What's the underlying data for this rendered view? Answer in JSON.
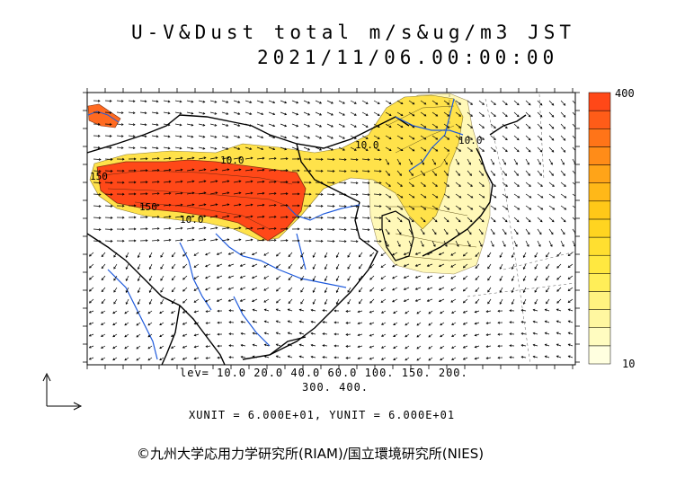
{
  "title": {
    "line1": "U-V&Dust total m/s&ug/m3 JST",
    "line2": "2021/11/06.00:00:00"
  },
  "legend": {
    "max_label": "400",
    "min_label": "10",
    "colors": [
      "#ffffe0",
      "#fffcc0",
      "#fff7a0",
      "#fff380",
      "#ffee58",
      "#ffe840",
      "#ffdf30",
      "#ffd420",
      "#ffc818",
      "#ffb818",
      "#ffa418",
      "#ff8c18",
      "#ff7418",
      "#ff5c18",
      "#ff4818"
    ]
  },
  "levels": {
    "line1": "lev= 10.0 20.0 40.0 60.0 100. 150. 200.",
    "line2": "300. 400."
  },
  "units": "XUNIT = 6.000E+01, YUNIT = 6.000E+01",
  "credit": "©九州大学応用力学研究所(RIAM)/国立環境研究所(NIES)",
  "contour_labels": [
    "150",
    "10.0",
    "10.0",
    "10.0",
    "10.0",
    "150"
  ],
  "colors": {
    "high": "#ff4818",
    "medium": "#ffd030",
    "low": "#fff8b0",
    "rivers": "#1e5adc",
    "borders": "#000000"
  }
}
